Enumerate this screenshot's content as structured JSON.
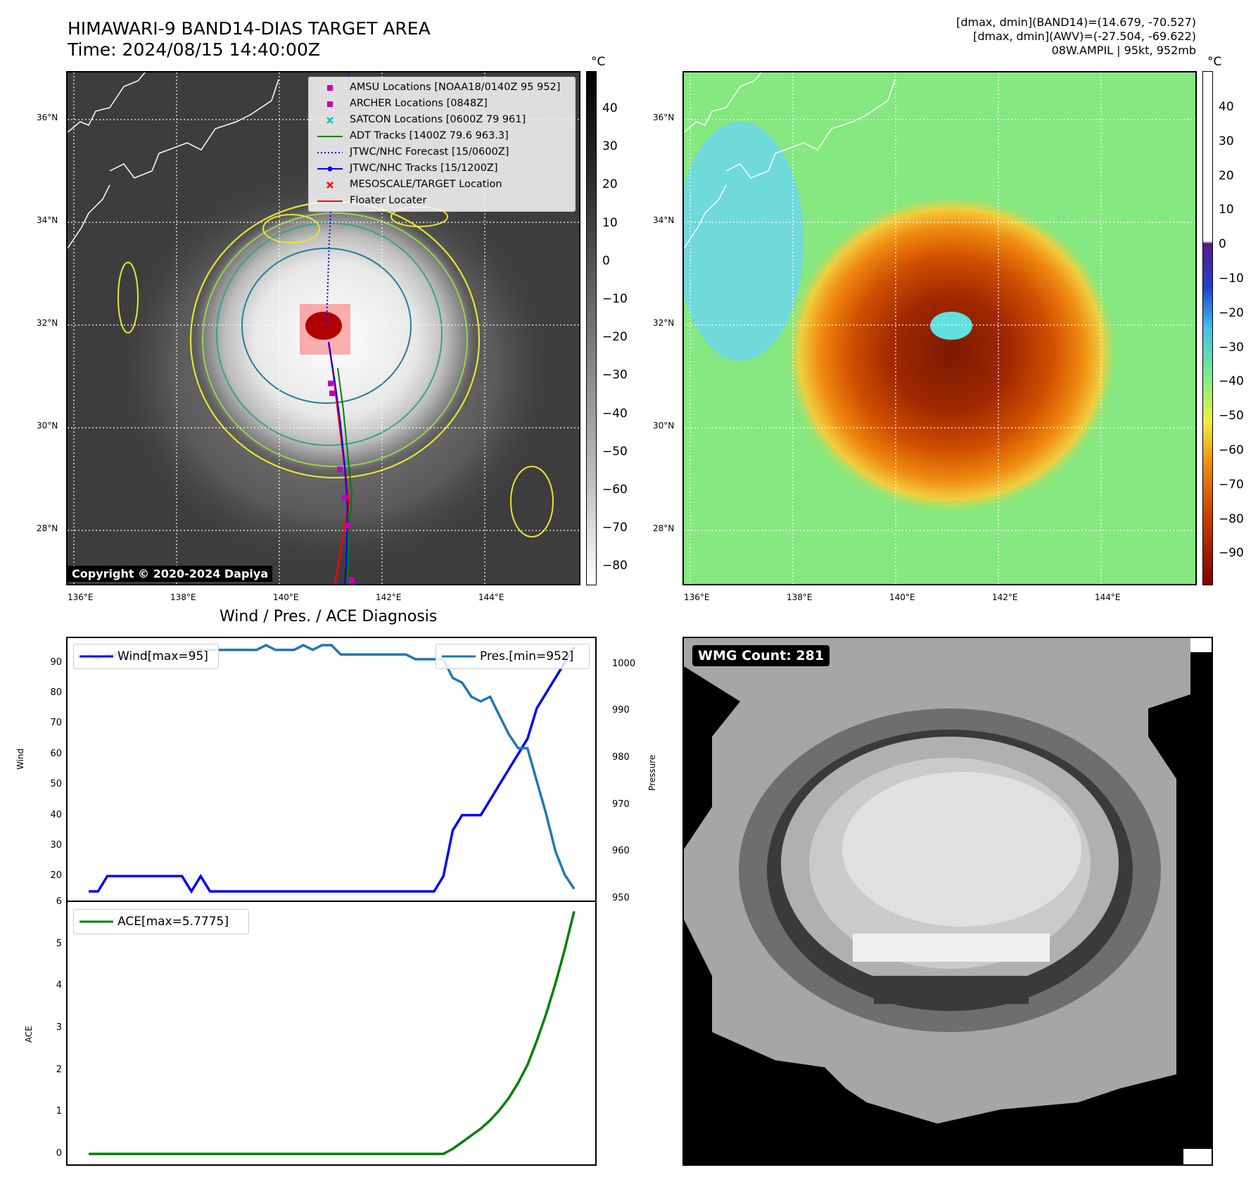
{
  "header": {
    "title_line1": "HIMAWARI-9 BAND14-DIAS TARGET AREA",
    "title_line2": "Time: 2024/08/15 14:40:00Z",
    "right_line1": "[dmax, dmin](BAND14)=(14.679, -70.527)",
    "right_line2": "[dmax, dmin](AWV)=(-27.504, -69.622)",
    "right_line3": "08W.AMPIL | 95kt, 952mb"
  },
  "map": {
    "lat_labels": [
      "36°N",
      "34°N",
      "32°N",
      "30°N",
      "28°N"
    ],
    "lon_labels": [
      "136°E",
      "138°E",
      "140°E",
      "142°E",
      "144°E"
    ],
    "copyright": "Copyright © 2020-2024 Dapiya",
    "legend": [
      {
        "label": "AMSU Locations [NOAA18/0140Z 95 952]",
        "color": "#c000c0",
        "icon": "square-marker"
      },
      {
        "label": "ARCHER Locations [0848Z]",
        "color": "#c000c0",
        "icon": "square-marker"
      },
      {
        "label": "SATCON Locations [0600Z 79 961]",
        "color": "#00c0c0",
        "icon": "x-marker"
      },
      {
        "label": "ADT Tracks [1400Z 79.6 963.3]",
        "color": "#008000",
        "icon": "solid-line"
      },
      {
        "label": "JTWC/NHC Forecast [15/0600Z]",
        "color": "#0000ff",
        "icon": "dotted-line"
      },
      {
        "label": "JTWC/NHC Tracks [15/1200Z]",
        "color": "#0000ff",
        "icon": "line-with-dot"
      },
      {
        "label": "MESOSCALE/TARGET Location",
        "color": "#ff0000",
        "icon": "x-marker"
      },
      {
        "label": "Floater Locater",
        "color": "#ff0000",
        "icon": "solid-line"
      }
    ]
  },
  "colorbar_gray": {
    "unit": "°C",
    "ticks": [
      "40",
      "30",
      "20",
      "10",
      "0",
      "−10",
      "−20",
      "−30",
      "−40",
      "−50",
      "−60",
      "−70",
      "−80"
    ]
  },
  "colorbar_color": {
    "unit": "°C",
    "ticks": [
      "40",
      "30",
      "20",
      "10",
      "0",
      "−10",
      "−20",
      "−30",
      "−40",
      "−50",
      "−60",
      "−70",
      "−80",
      "−90"
    ]
  },
  "diagnosis": {
    "title": "Wind / Pres. / ACE Diagnosis",
    "wind_axis_label": "Wind",
    "pressure_axis_label": "Pressure",
    "ace_axis_label": "ACE",
    "wind_legend": "Wind[max=95]",
    "pres_legend": "Pres.[min=952]",
    "ace_legend": "ACE[max=5.7775]",
    "wind_ticks": [
      "90",
      "80",
      "70",
      "60",
      "50",
      "40",
      "30",
      "20"
    ],
    "pres_ticks": [
      "1000",
      "990",
      "980",
      "970",
      "960",
      "950"
    ],
    "ace_ticks": [
      "6",
      "5",
      "4",
      "3",
      "2",
      "1",
      "0"
    ]
  },
  "wmg": {
    "label": "WMG Count: 281"
  },
  "colors": {
    "wind": "#0000ff",
    "pressure": "#1f77b4",
    "ace": "#008000"
  },
  "chart_data": [
    {
      "type": "line",
      "title": "Wind / Pres. / ACE Diagnosis",
      "ylabel": "Wind",
      "ylim": [
        12,
        98
      ],
      "series": [
        {
          "name": "Wind[max=95]",
          "values": [
            15,
            15,
            20,
            20,
            20,
            20,
            20,
            20,
            20,
            20,
            20,
            15,
            20,
            15,
            15,
            15,
            15,
            15,
            15,
            15,
            15,
            15,
            15,
            15,
            15,
            15,
            15,
            15,
            15,
            15,
            15,
            15,
            15,
            15,
            15,
            15,
            15,
            15,
            20,
            35,
            40,
            40,
            40,
            45,
            50,
            55,
            60,
            65,
            75,
            80,
            85,
            90,
            95
          ]
        }
      ]
    },
    {
      "type": "line",
      "ylabel": "Pressure",
      "ylim": [
        949.5,
        1005.5
      ],
      "series": [
        {
          "name": "Pres.[min=952]",
          "values": [
            1002,
            1001,
            1002,
            1002,
            1001,
            1002,
            1002,
            1002,
            1001,
            1002,
            1002,
            1003,
            1003,
            1003,
            1003,
            1003,
            1003,
            1003,
            1003,
            1004,
            1003,
            1003,
            1003,
            1004,
            1003,
            1004,
            1004,
            1002,
            1002,
            1002,
            1002,
            1002,
            1002,
            1002,
            1002,
            1001,
            1001,
            1001,
            1001,
            997,
            996,
            993,
            992,
            993,
            989,
            985,
            982,
            982,
            975,
            968,
            960,
            955,
            952
          ]
        }
      ]
    },
    {
      "type": "area",
      "ylabel": "ACE",
      "ylim": [
        -0.25,
        6
      ],
      "series": [
        {
          "name": "ACE[max=5.7775]",
          "values": [
            0,
            0,
            0,
            0,
            0,
            0,
            0,
            0,
            0,
            0,
            0,
            0,
            0,
            0,
            0,
            0,
            0,
            0,
            0,
            0,
            0,
            0,
            0,
            0,
            0,
            0,
            0,
            0,
            0,
            0,
            0,
            0,
            0,
            0,
            0,
            0,
            0,
            0,
            0,
            0.12,
            0.28,
            0.44,
            0.6,
            0.8,
            1.04,
            1.33,
            1.69,
            2.12,
            2.69,
            3.33,
            4.06,
            4.87,
            5.7775
          ]
        }
      ]
    }
  ]
}
